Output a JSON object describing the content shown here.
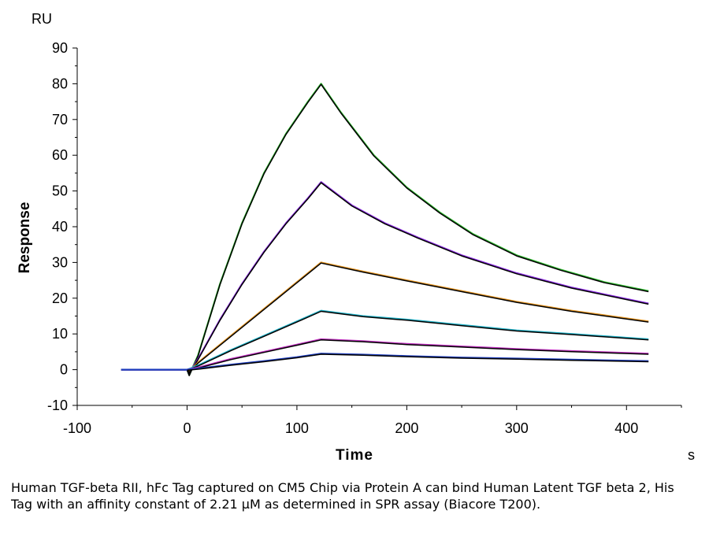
{
  "chart_data": {
    "type": "line",
    "y_unit": "RU",
    "x_unit": "s",
    "xlabel": "Time",
    "ylabel": "Response",
    "xlim": [
      -100,
      450
    ],
    "ylim": [
      -10,
      90
    ],
    "x_ticks": [
      -100,
      0,
      100,
      200,
      300,
      400
    ],
    "y_ticks": [
      -10,
      0,
      10,
      20,
      30,
      40,
      50,
      60,
      70,
      80,
      90
    ],
    "grid": false,
    "legend": "none",
    "series": [
      {
        "color": "#2eb82e",
        "fit_color": "#000000",
        "points": [
          [
            -60,
            0
          ],
          [
            -30,
            0
          ],
          [
            0,
            0
          ],
          [
            2,
            -1.5
          ],
          [
            10,
            4
          ],
          [
            30,
            24
          ],
          [
            50,
            41
          ],
          [
            70,
            55
          ],
          [
            90,
            66
          ],
          [
            110,
            75
          ],
          [
            122,
            80
          ],
          [
            140,
            72
          ],
          [
            170,
            60
          ],
          [
            200,
            51
          ],
          [
            230,
            44
          ],
          [
            260,
            38
          ],
          [
            300,
            32
          ],
          [
            340,
            28
          ],
          [
            380,
            24.5
          ],
          [
            420,
            22
          ]
        ]
      },
      {
        "color": "#8a2be2",
        "fit_color": "#000000",
        "points": [
          [
            -60,
            0
          ],
          [
            -30,
            0
          ],
          [
            0,
            0
          ],
          [
            2,
            -1
          ],
          [
            10,
            3
          ],
          [
            30,
            14
          ],
          [
            50,
            24
          ],
          [
            70,
            33
          ],
          [
            90,
            41
          ],
          [
            110,
            48
          ],
          [
            122,
            52.5
          ],
          [
            150,
            46
          ],
          [
            180,
            41
          ],
          [
            210,
            37
          ],
          [
            250,
            32
          ],
          [
            300,
            27
          ],
          [
            350,
            23
          ],
          [
            420,
            18.5
          ]
        ]
      },
      {
        "color": "#e69520",
        "fit_color": "#000000",
        "points": [
          [
            -60,
            0
          ],
          [
            -30,
            0
          ],
          [
            0,
            0
          ],
          [
            2,
            -0.5
          ],
          [
            10,
            2
          ],
          [
            40,
            9.5
          ],
          [
            70,
            17
          ],
          [
            100,
            24.5
          ],
          [
            122,
            30
          ],
          [
            160,
            27.5
          ],
          [
            200,
            25
          ],
          [
            250,
            22
          ],
          [
            300,
            19
          ],
          [
            350,
            16.5
          ],
          [
            420,
            13.5
          ]
        ]
      },
      {
        "color": "#20b2c8",
        "fit_color": "#000000",
        "points": [
          [
            -60,
            0
          ],
          [
            -30,
            0
          ],
          [
            0,
            0
          ],
          [
            10,
            1.2
          ],
          [
            40,
            5.5
          ],
          [
            70,
            9.5
          ],
          [
            100,
            13.5
          ],
          [
            122,
            16.5
          ],
          [
            160,
            15
          ],
          [
            200,
            14
          ],
          [
            250,
            12.5
          ],
          [
            300,
            11
          ],
          [
            350,
            10
          ],
          [
            420,
            8.5
          ]
        ]
      },
      {
        "color": "#c030c0",
        "fit_color": "#000000",
        "points": [
          [
            -60,
            0
          ],
          [
            -30,
            0
          ],
          [
            0,
            0
          ],
          [
            10,
            0.6
          ],
          [
            40,
            3
          ],
          [
            70,
            5
          ],
          [
            100,
            7
          ],
          [
            122,
            8.5
          ],
          [
            160,
            8
          ],
          [
            200,
            7.2
          ],
          [
            250,
            6.5
          ],
          [
            300,
            5.8
          ],
          [
            350,
            5.2
          ],
          [
            420,
            4.5
          ]
        ]
      },
      {
        "color": "#1f3fbf",
        "fit_color": "#000000",
        "points": [
          [
            -60,
            0
          ],
          [
            -30,
            0
          ],
          [
            0,
            0
          ],
          [
            10,
            0.3
          ],
          [
            40,
            1.4
          ],
          [
            70,
            2.4
          ],
          [
            100,
            3.5
          ],
          [
            122,
            4.5
          ],
          [
            160,
            4.2
          ],
          [
            200,
            3.8
          ],
          [
            250,
            3.4
          ],
          [
            300,
            3.1
          ],
          [
            350,
            2.8
          ],
          [
            420,
            2.4
          ]
        ]
      }
    ]
  },
  "caption": "Human TGF-beta RII, hFc Tag captured on CM5 Chip via Protein A can bind Human Latent TGF beta 2, His Tag with an affinity constant of 2.21 μM as determined in SPR assay (Biacore T200)."
}
